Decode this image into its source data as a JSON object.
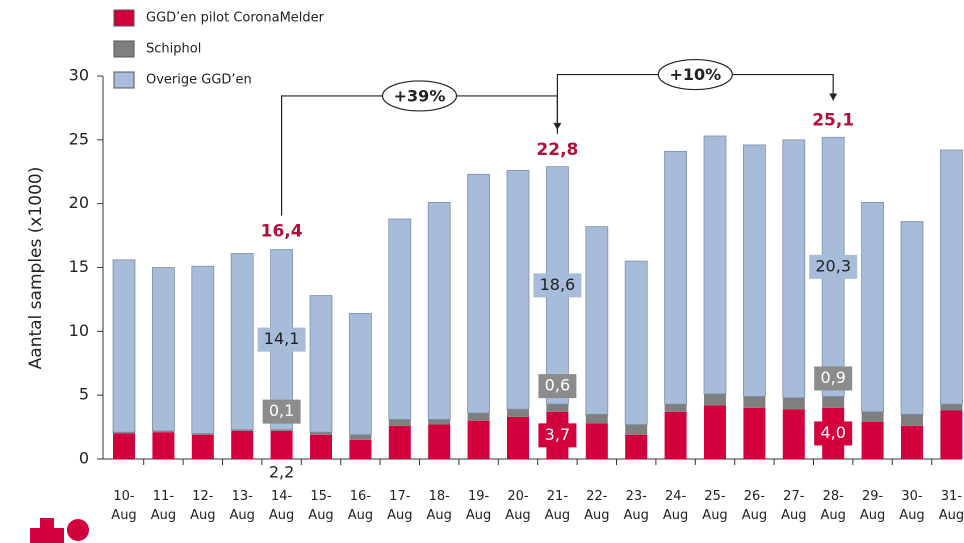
{
  "chart_data": {
    "type": "bar",
    "stacked": true,
    "y_label": "Aantal samples (x1000)",
    "categories": [
      "10- Aug",
      "11- Aug",
      "12- Aug",
      "13- Aug",
      "14- Aug",
      "15- Aug",
      "16- Aug",
      "17- Aug",
      "18- Aug",
      "19- Aug",
      "20- Aug",
      "21- Aug",
      "22- Aug",
      "23- Aug",
      "24- Aug",
      "25- Aug",
      "26- Aug",
      "27- Aug",
      "28- Aug",
      "29- Aug",
      "30- Aug",
      "31- Aug"
    ],
    "series": [
      {
        "name": "GGD’en pilot CoronaMelder",
        "color": "#d2003c",
        "values": [
          2.0,
          2.1,
          1.9,
          2.2,
          2.2,
          1.9,
          1.5,
          2.6,
          2.7,
          3.0,
          3.3,
          3.7,
          2.8,
          1.9,
          3.7,
          4.2,
          4.0,
          3.9,
          4.0,
          2.9,
          2.6,
          3.8
        ],
        "value_labels": [
          null,
          null,
          null,
          null,
          "2,2",
          null,
          null,
          null,
          null,
          null,
          null,
          "3,7",
          null,
          null,
          null,
          null,
          null,
          null,
          "4,0",
          null,
          null,
          null
        ]
      },
      {
        "name": "Schiphol",
        "color": "#7f7f7f",
        "values": [
          0.1,
          0.1,
          0.1,
          0.1,
          0.1,
          0.2,
          0.4,
          0.5,
          0.4,
          0.6,
          0.6,
          0.6,
          0.7,
          0.8,
          0.6,
          0.9,
          0.9,
          0.9,
          0.9,
          0.8,
          0.9,
          0.5
        ],
        "value_labels": [
          null,
          null,
          null,
          null,
          "0,1",
          null,
          null,
          null,
          null,
          null,
          null,
          "0,6",
          null,
          null,
          null,
          null,
          null,
          null,
          "0,9",
          null,
          null,
          null
        ]
      },
      {
        "name": "Overige GGD’en",
        "color": "#a7bcd8",
        "values": [
          13.5,
          12.8,
          13.1,
          13.8,
          14.1,
          10.7,
          9.5,
          15.7,
          17.0,
          18.7,
          18.7,
          18.6,
          14.7,
          12.8,
          19.8,
          20.2,
          19.7,
          20.2,
          20.3,
          16.4,
          15.1,
          19.9
        ],
        "value_labels": [
          null,
          null,
          null,
          null,
          "14,1",
          null,
          null,
          null,
          null,
          null,
          null,
          "18,6",
          null,
          null,
          null,
          null,
          null,
          null,
          "20,3",
          null,
          null,
          null
        ]
      }
    ],
    "totals": [
      {
        "category": "14- Aug",
        "value": 16.4,
        "label": "16,4"
      },
      {
        "category": "21- Aug",
        "value": 22.8,
        "label": "22,8"
      },
      {
        "category": "28- Aug",
        "value": 25.1,
        "label": "25,1"
      }
    ],
    "annotations": [
      {
        "text": "+39%",
        "from": "14- Aug",
        "to": "21- Aug"
      },
      {
        "text": "+10%",
        "from": "21- Aug",
        "to": "28- Aug"
      }
    ],
    "ylim": [
      0,
      30
    ],
    "yticks": [
      0,
      5,
      10,
      15,
      20,
      25,
      30
    ],
    "legend": "top-left"
  }
}
